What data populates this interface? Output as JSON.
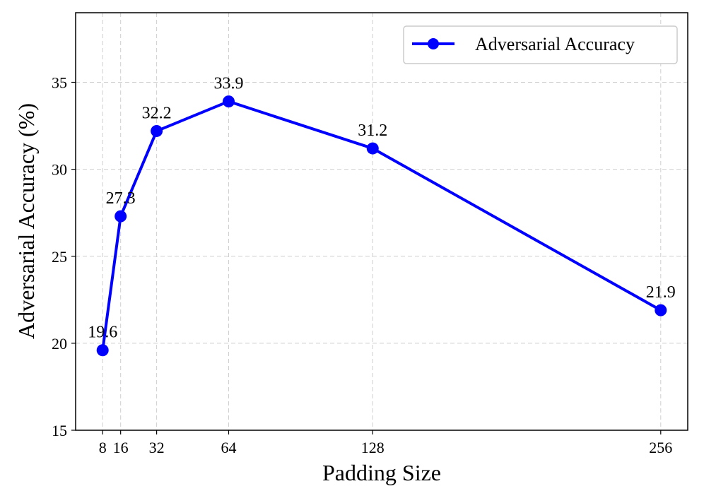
{
  "chart_data": {
    "type": "line",
    "title": "",
    "xlabel": "Padding Size",
    "ylabel": "Adversarial Accuracy (%)",
    "x": [
      8,
      16,
      32,
      64,
      128,
      256
    ],
    "x_tick_labels": [
      "8",
      "16",
      "32",
      "64",
      "128",
      "256"
    ],
    "xlim": [
      -4,
      268
    ],
    "ylim": [
      15,
      39
    ],
    "y_ticks": [
      15,
      20,
      25,
      30,
      35
    ],
    "y_tick_labels": [
      "15",
      "20",
      "25",
      "30",
      "35"
    ],
    "grid": true,
    "legend_position": "top-right",
    "series": [
      {
        "name": "Adversarial Accuracy",
        "values": [
          19.6,
          27.3,
          32.2,
          33.9,
          31.2,
          21.9
        ],
        "data_labels": [
          "19.6",
          "27.3",
          "32.2",
          "33.9",
          "31.2",
          "21.9"
        ],
        "color": "#0000ff",
        "marker": "circle"
      }
    ]
  }
}
